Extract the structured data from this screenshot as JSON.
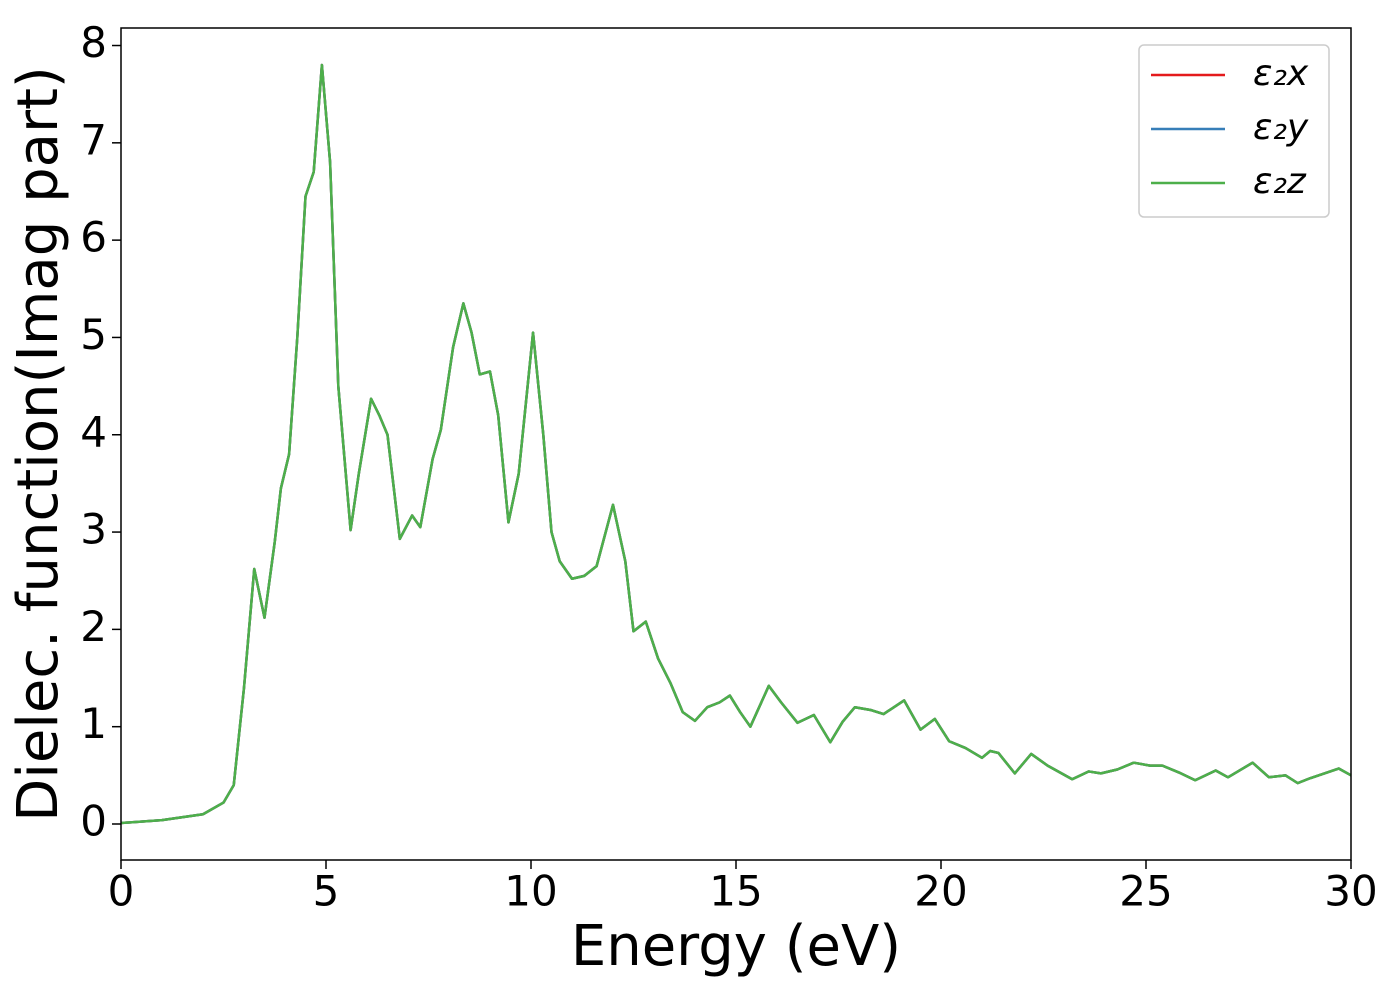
{
  "chart_data": {
    "type": "line",
    "xlabel": "Energy (eV)",
    "ylabel": "Dielec. function(Imag part)",
    "x": [
      0,
      1,
      2,
      2.5,
      2.75,
      3.0,
      3.25,
      3.5,
      3.75,
      3.9,
      4.1,
      4.3,
      4.5,
      4.7,
      4.9,
      5.1,
      5.3,
      5.6,
      5.8,
      6.1,
      6.3,
      6.5,
      6.8,
      7.1,
      7.3,
      7.6,
      7.8,
      8.1,
      8.35,
      8.55,
      8.75,
      9.0,
      9.2,
      9.45,
      9.7,
      10.05,
      10.3,
      10.5,
      10.7,
      11.0,
      11.3,
      11.6,
      12.0,
      12.3,
      12.5,
      12.8,
      13.1,
      13.4,
      13.7,
      14.0,
      14.3,
      14.6,
      14.85,
      15.1,
      15.35,
      15.8,
      16.1,
      16.5,
      16.9,
      17.3,
      17.6,
      17.9,
      18.3,
      18.6,
      19.1,
      19.5,
      19.85,
      20.2,
      20.6,
      21.0,
      21.2,
      21.4,
      21.8,
      22.2,
      22.6,
      23.2,
      23.6,
      23.9,
      24.3,
      24.7,
      25.1,
      25.4,
      25.8,
      26.2,
      26.7,
      27.0,
      27.6,
      28.0,
      28.4,
      28.7,
      29.0,
      29.7,
      30
    ],
    "series": [
      {
        "name": "ε₂x",
        "color": "#e41a1c",
        "values": [
          0.01,
          0.04,
          0.1,
          0.22,
          0.4,
          1.4,
          2.62,
          2.12,
          2.9,
          3.45,
          3.8,
          5.0,
          6.45,
          6.7,
          7.8,
          6.8,
          4.5,
          3.02,
          3.6,
          4.37,
          4.2,
          4.0,
          2.93,
          3.17,
          3.05,
          3.75,
          4.05,
          4.9,
          5.35,
          5.05,
          4.62,
          4.65,
          4.2,
          3.1,
          3.6,
          5.05,
          4.0,
          3.0,
          2.7,
          2.52,
          2.55,
          2.65,
          3.28,
          2.7,
          1.98,
          2.08,
          1.7,
          1.45,
          1.15,
          1.06,
          1.2,
          1.25,
          1.32,
          1.15,
          1.0,
          1.42,
          1.25,
          1.04,
          1.12,
          0.84,
          1.05,
          1.2,
          1.17,
          1.13,
          1.27,
          0.97,
          1.08,
          0.85,
          0.78,
          0.68,
          0.75,
          0.73,
          0.52,
          0.72,
          0.6,
          0.46,
          0.54,
          0.52,
          0.56,
          0.63,
          0.6,
          0.6,
          0.53,
          0.45,
          0.55,
          0.48,
          0.63,
          0.48,
          0.5,
          0.42,
          0.47,
          0.57,
          0.5
        ]
      },
      {
        "name": "ε₂y",
        "color": "#377eb8",
        "values": [
          0.01,
          0.04,
          0.1,
          0.22,
          0.4,
          1.4,
          2.62,
          2.12,
          2.9,
          3.45,
          3.8,
          5.0,
          6.45,
          6.7,
          7.8,
          6.8,
          4.5,
          3.02,
          3.6,
          4.37,
          4.2,
          4.0,
          2.93,
          3.17,
          3.05,
          3.75,
          4.05,
          4.9,
          5.35,
          5.05,
          4.62,
          4.65,
          4.2,
          3.1,
          3.6,
          5.05,
          4.0,
          3.0,
          2.7,
          2.52,
          2.55,
          2.65,
          3.28,
          2.7,
          1.98,
          2.08,
          1.7,
          1.45,
          1.15,
          1.06,
          1.2,
          1.25,
          1.32,
          1.15,
          1.0,
          1.42,
          1.25,
          1.04,
          1.12,
          0.84,
          1.05,
          1.2,
          1.17,
          1.13,
          1.27,
          0.97,
          1.08,
          0.85,
          0.78,
          0.68,
          0.75,
          0.73,
          0.52,
          0.72,
          0.6,
          0.46,
          0.54,
          0.52,
          0.56,
          0.63,
          0.6,
          0.6,
          0.53,
          0.45,
          0.55,
          0.48,
          0.63,
          0.48,
          0.5,
          0.42,
          0.47,
          0.57,
          0.5
        ]
      },
      {
        "name": "ε₂z",
        "color": "#4daf4a",
        "values": [
          0.01,
          0.04,
          0.1,
          0.22,
          0.4,
          1.4,
          2.62,
          2.12,
          2.9,
          3.45,
          3.8,
          5.0,
          6.45,
          6.7,
          7.8,
          6.8,
          4.5,
          3.02,
          3.6,
          4.37,
          4.2,
          4.0,
          2.93,
          3.17,
          3.05,
          3.75,
          4.05,
          4.9,
          5.35,
          5.05,
          4.62,
          4.65,
          4.2,
          3.1,
          3.6,
          5.05,
          4.0,
          3.0,
          2.7,
          2.52,
          2.55,
          2.65,
          3.28,
          2.7,
          1.98,
          2.08,
          1.7,
          1.45,
          1.15,
          1.06,
          1.2,
          1.25,
          1.32,
          1.15,
          1.0,
          1.42,
          1.25,
          1.04,
          1.12,
          0.84,
          1.05,
          1.2,
          1.17,
          1.13,
          1.27,
          0.97,
          1.08,
          0.85,
          0.78,
          0.68,
          0.75,
          0.73,
          0.52,
          0.72,
          0.6,
          0.46,
          0.54,
          0.52,
          0.56,
          0.63,
          0.6,
          0.6,
          0.53,
          0.45,
          0.55,
          0.48,
          0.63,
          0.48,
          0.5,
          0.42,
          0.47,
          0.57,
          0.5
        ]
      }
    ],
    "xlim": [
      0,
      30
    ],
    "xticks": [
      0,
      5,
      10,
      15,
      20,
      25,
      30
    ],
    "ylim": [
      -0.37,
      8.18
    ],
    "yticks": [
      0,
      1,
      2,
      3,
      4,
      5,
      6,
      7,
      8
    ],
    "grid": false,
    "legend": "upper right"
  }
}
